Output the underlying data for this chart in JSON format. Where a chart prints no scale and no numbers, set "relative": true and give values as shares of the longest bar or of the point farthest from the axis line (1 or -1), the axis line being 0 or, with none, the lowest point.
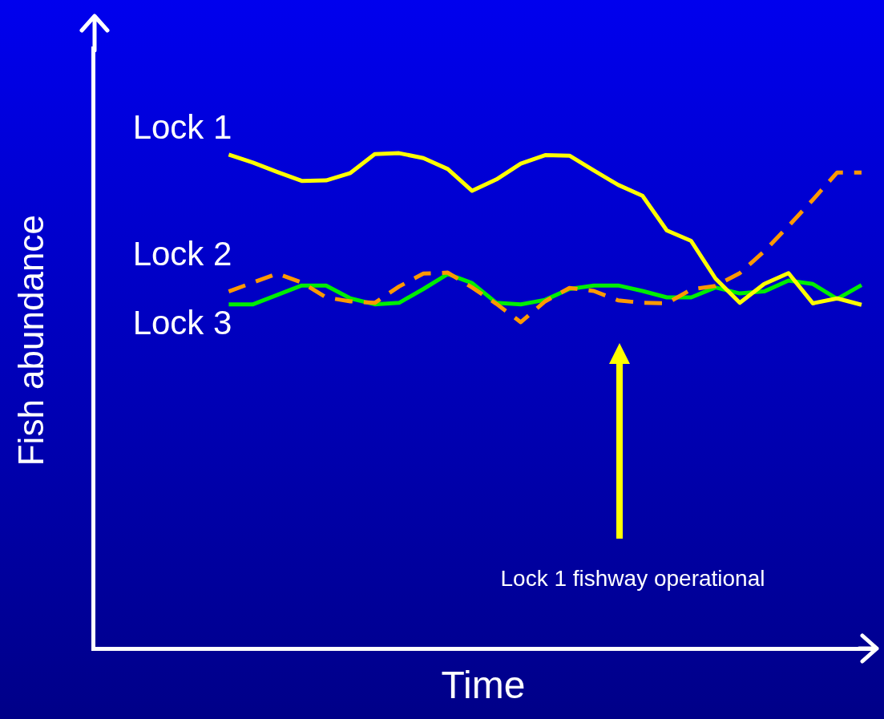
{
  "chart_data": {
    "type": "line",
    "relative": true,
    "xlabel": "Time",
    "ylabel": "Fish abundance",
    "legend": false,
    "grid": false,
    "marker": "none",
    "categories": [
      null,
      null,
      null,
      null,
      null,
      null,
      null,
      null,
      null,
      null,
      null,
      null,
      null,
      null,
      null,
      null,
      null,
      null,
      null,
      null,
      null,
      null,
      null,
      null,
      null,
      null,
      null
    ],
    "series": [
      {
        "name": "Lock 1",
        "color": "#ffff00",
        "line_style": "solid",
        "values": [
          0.997,
          0.981,
          0.962,
          0.944,
          0.945,
          0.96,
          0.998,
          1,
          0.99,
          0.968,
          0.924,
          0.947,
          0.979,
          0.996,
          0.995,
          0.965,
          0.936,
          0.914,
          0.844,
          0.823,
          0.747,
          0.698,
          0.736,
          0.758,
          0.697,
          0.707,
          0.694
        ]
      },
      {
        "name": "Lock 2",
        "color": "#ff9900",
        "line_style": "dashed",
        "values": [
          0.721,
          0.739,
          0.757,
          0.739,
          0.709,
          0.701,
          0.698,
          0.731,
          0.757,
          0.759,
          0.729,
          0.696,
          0.659,
          0.701,
          0.728,
          0.722,
          0.703,
          0.698,
          0.697,
          0.725,
          0.732,
          0.758,
          0.802,
          0.853,
          0.906,
          0.961,
          0.961
        ]
      },
      {
        "name": "Lock 3",
        "color": "#00ee00",
        "line_style": "solid",
        "values": [
          0.695,
          0.695,
          0.714,
          0.733,
          0.733,
          0.707,
          0.695,
          0.698,
          0.726,
          0.756,
          0.738,
          0.698,
          0.695,
          0.704,
          0.726,
          0.733,
          0.733,
          0.722,
          0.709,
          0.709,
          0.729,
          0.717,
          0.721,
          0.743,
          0.736,
          0.706,
          0.734
        ]
      }
    ],
    "annotations": [
      "Lock 1 fishway operational"
    ]
  }
}
